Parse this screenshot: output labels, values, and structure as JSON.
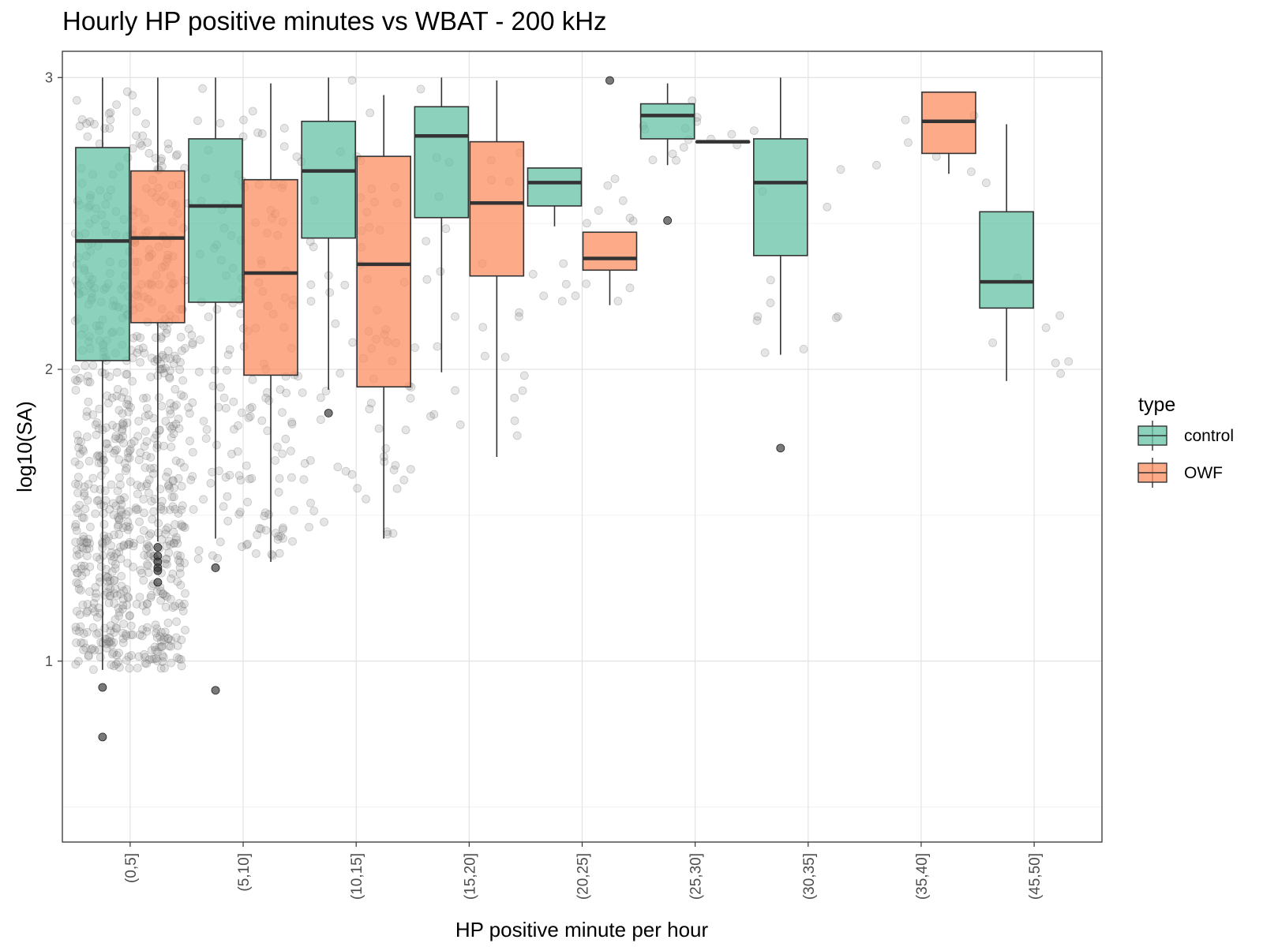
{
  "chart_data": {
    "type": "box",
    "title": "Hourly HP positive minutes vs WBAT - 200 kHz",
    "xlabel": "HP positive minute per hour",
    "ylabel": "log10(SA)",
    "ylim": [
      0.38,
      3.09
    ],
    "yticks": [
      1,
      2,
      3
    ],
    "categories": [
      "(0,5]",
      "(5,10]",
      "(10,15]",
      "(15,20]",
      "(20,25]",
      "(25,30]",
      "(30,35]",
      "(35,40]",
      "(45,50]"
    ],
    "grid": true,
    "legend": {
      "title": "type",
      "position": "right",
      "entries": [
        {
          "name": "control",
          "color": "#66c2a5"
        },
        {
          "name": "OWF",
          "color": "#fc8d62"
        }
      ]
    },
    "series": [
      {
        "name": "control",
        "color": "#66c2a5",
        "boxes": [
          {
            "category": "(0,5]",
            "min": 0.97,
            "q1": 2.03,
            "median": 2.44,
            "q3": 2.76,
            "max": 3.0,
            "outliers": [
              0.91,
              0.74
            ]
          },
          {
            "category": "(5,10]",
            "min": 1.42,
            "q1": 2.23,
            "median": 2.56,
            "q3": 2.79,
            "max": 3.0,
            "outliers": [
              1.32,
              0.9
            ]
          },
          {
            "category": "(10,15]",
            "min": 1.93,
            "q1": 2.45,
            "median": 2.68,
            "q3": 2.85,
            "max": 3.0,
            "outliers": [
              1.85
            ]
          },
          {
            "category": "(15,20]",
            "min": 1.99,
            "q1": 2.52,
            "median": 2.8,
            "q3": 2.9,
            "max": 3.0,
            "outliers": []
          },
          {
            "category": "(20,25]",
            "min": 2.49,
            "q1": 2.56,
            "median": 2.64,
            "q3": 2.69,
            "max": 2.69,
            "outliers": []
          },
          {
            "category": "(25,30]",
            "min": 2.7,
            "q1": 2.79,
            "median": 2.87,
            "q3": 2.91,
            "max": 2.98,
            "outliers": [
              2.51
            ]
          },
          {
            "category": "(30,35]",
            "min": 2.05,
            "q1": 2.39,
            "median": 2.64,
            "q3": 2.79,
            "max": 3.0,
            "outliers": [
              1.73
            ]
          },
          {
            "category": "(45,50]",
            "min": 1.96,
            "q1": 2.21,
            "median": 2.3,
            "q3": 2.54,
            "max": 2.84,
            "outliers": []
          }
        ]
      },
      {
        "name": "OWF",
        "color": "#fc8d62",
        "boxes": [
          {
            "category": "(0,5]",
            "min": 1.41,
            "q1": 2.16,
            "median": 2.45,
            "q3": 2.68,
            "max": 3.0,
            "outliers": [
              1.39,
              1.36,
              1.34,
              1.32,
              1.31,
              1.27
            ]
          },
          {
            "category": "(5,10]",
            "min": 1.34,
            "q1": 1.98,
            "median": 2.33,
            "q3": 2.65,
            "max": 2.98,
            "outliers": []
          },
          {
            "category": "(10,15]",
            "min": 1.42,
            "q1": 1.94,
            "median": 2.36,
            "q3": 2.73,
            "max": 2.94,
            "outliers": []
          },
          {
            "category": "(15,20]",
            "min": 1.7,
            "q1": 2.32,
            "median": 2.57,
            "q3": 2.78,
            "max": 2.99,
            "outliers": []
          },
          {
            "category": "(20,25]",
            "min": 2.22,
            "q1": 2.34,
            "median": 2.38,
            "q3": 2.47,
            "max": 2.47,
            "outliers": [
              2.99
            ]
          },
          {
            "category": "(25,30]",
            "min": 2.78,
            "q1": 2.78,
            "median": 2.78,
            "q3": 2.78,
            "max": 2.78,
            "outliers": []
          },
          {
            "category": "(35,40]",
            "min": 2.67,
            "q1": 2.74,
            "median": 2.85,
            "q3": 2.95,
            "max": 2.95,
            "outliers": []
          }
        ]
      }
    ]
  }
}
